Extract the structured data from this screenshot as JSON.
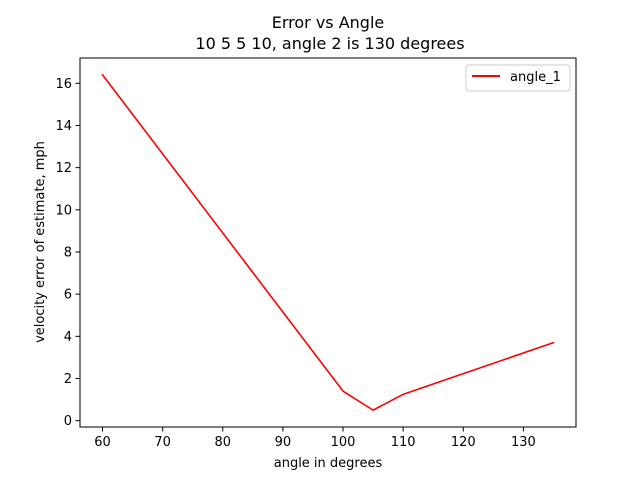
{
  "chart_data": {
    "type": "line",
    "title": "Error vs Angle",
    "subtitle": "10 5 5 10, angle 2 is 130 degrees",
    "xlabel": "angle in degrees",
    "ylabel": "velocity error of estimate, mph",
    "xlim": [
      56.25,
      138.75
    ],
    "ylim": [
      -0.3,
      17.2
    ],
    "xticks": [
      60,
      70,
      80,
      90,
      100,
      110,
      120,
      130
    ],
    "yticks": [
      0,
      2,
      4,
      6,
      8,
      10,
      12,
      14,
      16
    ],
    "grid": false,
    "legend_position": "top-right",
    "series": [
      {
        "name": "angle_1",
        "color": "#ff0000",
        "x": [
          60,
          100,
          105,
          110,
          135
        ],
        "y": [
          16.4,
          1.4,
          0.5,
          1.25,
          3.7
        ]
      }
    ]
  }
}
